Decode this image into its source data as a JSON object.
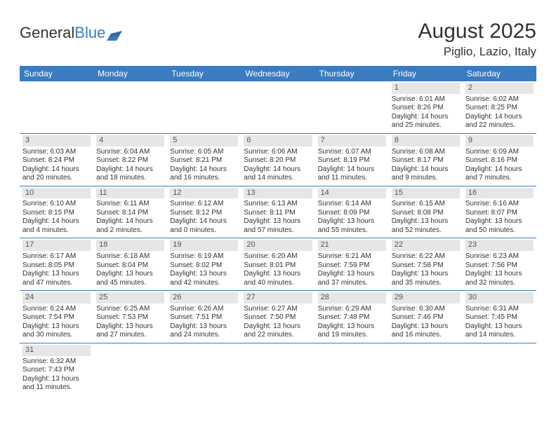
{
  "logo": {
    "part1": "General",
    "part2": "Blue"
  },
  "title": "August 2025",
  "location": "Piglio, Lazio, Italy",
  "colors": {
    "header_bg": "#3b7bbf",
    "header_fg": "#ffffff",
    "daynum_bg": "#e6e6e6",
    "border": "#3b7bbf",
    "page_bg": "#ffffff",
    "text": "#333333"
  },
  "typography": {
    "title_fontsize_pt": 22,
    "location_fontsize_pt": 13,
    "header_fontsize_pt": 9,
    "cell_fontsize_pt": 7.5
  },
  "weekdays": [
    "Sunday",
    "Monday",
    "Tuesday",
    "Wednesday",
    "Thursday",
    "Friday",
    "Saturday"
  ],
  "weeks": [
    [
      {
        "blank": true
      },
      {
        "blank": true
      },
      {
        "blank": true
      },
      {
        "blank": true
      },
      {
        "blank": true
      },
      {
        "day": "1",
        "sunrise": "Sunrise: 6:01 AM",
        "sunset": "Sunset: 8:26 PM",
        "daylight": "Daylight: 14 hours and 25 minutes."
      },
      {
        "day": "2",
        "sunrise": "Sunrise: 6:02 AM",
        "sunset": "Sunset: 8:25 PM",
        "daylight": "Daylight: 14 hours and 22 minutes."
      }
    ],
    [
      {
        "day": "3",
        "sunrise": "Sunrise: 6:03 AM",
        "sunset": "Sunset: 8:24 PM",
        "daylight": "Daylight: 14 hours and 20 minutes."
      },
      {
        "day": "4",
        "sunrise": "Sunrise: 6:04 AM",
        "sunset": "Sunset: 8:22 PM",
        "daylight": "Daylight: 14 hours and 18 minutes."
      },
      {
        "day": "5",
        "sunrise": "Sunrise: 6:05 AM",
        "sunset": "Sunset: 8:21 PM",
        "daylight": "Daylight: 14 hours and 16 minutes."
      },
      {
        "day": "6",
        "sunrise": "Sunrise: 6:06 AM",
        "sunset": "Sunset: 8:20 PM",
        "daylight": "Daylight: 14 hours and 14 minutes."
      },
      {
        "day": "7",
        "sunrise": "Sunrise: 6:07 AM",
        "sunset": "Sunset: 8:19 PM",
        "daylight": "Daylight: 14 hours and 11 minutes."
      },
      {
        "day": "8",
        "sunrise": "Sunrise: 6:08 AM",
        "sunset": "Sunset: 8:17 PM",
        "daylight": "Daylight: 14 hours and 9 minutes."
      },
      {
        "day": "9",
        "sunrise": "Sunrise: 6:09 AM",
        "sunset": "Sunset: 8:16 PM",
        "daylight": "Daylight: 14 hours and 7 minutes."
      }
    ],
    [
      {
        "day": "10",
        "sunrise": "Sunrise: 6:10 AM",
        "sunset": "Sunset: 8:15 PM",
        "daylight": "Daylight: 14 hours and 4 minutes."
      },
      {
        "day": "11",
        "sunrise": "Sunrise: 6:11 AM",
        "sunset": "Sunset: 8:14 PM",
        "daylight": "Daylight: 14 hours and 2 minutes."
      },
      {
        "day": "12",
        "sunrise": "Sunrise: 6:12 AM",
        "sunset": "Sunset: 8:12 PM",
        "daylight": "Daylight: 14 hours and 0 minutes."
      },
      {
        "day": "13",
        "sunrise": "Sunrise: 6:13 AM",
        "sunset": "Sunset: 8:11 PM",
        "daylight": "Daylight: 13 hours and 57 minutes."
      },
      {
        "day": "14",
        "sunrise": "Sunrise: 6:14 AM",
        "sunset": "Sunset: 8:09 PM",
        "daylight": "Daylight: 13 hours and 55 minutes."
      },
      {
        "day": "15",
        "sunrise": "Sunrise: 6:15 AM",
        "sunset": "Sunset: 8:08 PM",
        "daylight": "Daylight: 13 hours and 52 minutes."
      },
      {
        "day": "16",
        "sunrise": "Sunrise: 6:16 AM",
        "sunset": "Sunset: 8:07 PM",
        "daylight": "Daylight: 13 hours and 50 minutes."
      }
    ],
    [
      {
        "day": "17",
        "sunrise": "Sunrise: 6:17 AM",
        "sunset": "Sunset: 8:05 PM",
        "daylight": "Daylight: 13 hours and 47 minutes."
      },
      {
        "day": "18",
        "sunrise": "Sunrise: 6:18 AM",
        "sunset": "Sunset: 8:04 PM",
        "daylight": "Daylight: 13 hours and 45 minutes."
      },
      {
        "day": "19",
        "sunrise": "Sunrise: 6:19 AM",
        "sunset": "Sunset: 8:02 PM",
        "daylight": "Daylight: 13 hours and 42 minutes."
      },
      {
        "day": "20",
        "sunrise": "Sunrise: 6:20 AM",
        "sunset": "Sunset: 8:01 PM",
        "daylight": "Daylight: 13 hours and 40 minutes."
      },
      {
        "day": "21",
        "sunrise": "Sunrise: 6:21 AM",
        "sunset": "Sunset: 7:59 PM",
        "daylight": "Daylight: 13 hours and 37 minutes."
      },
      {
        "day": "22",
        "sunrise": "Sunrise: 6:22 AM",
        "sunset": "Sunset: 7:58 PM",
        "daylight": "Daylight: 13 hours and 35 minutes."
      },
      {
        "day": "23",
        "sunrise": "Sunrise: 6:23 AM",
        "sunset": "Sunset: 7:56 PM",
        "daylight": "Daylight: 13 hours and 32 minutes."
      }
    ],
    [
      {
        "day": "24",
        "sunrise": "Sunrise: 6:24 AM",
        "sunset": "Sunset: 7:54 PM",
        "daylight": "Daylight: 13 hours and 30 minutes."
      },
      {
        "day": "25",
        "sunrise": "Sunrise: 6:25 AM",
        "sunset": "Sunset: 7:53 PM",
        "daylight": "Daylight: 13 hours and 27 minutes."
      },
      {
        "day": "26",
        "sunrise": "Sunrise: 6:26 AM",
        "sunset": "Sunset: 7:51 PM",
        "daylight": "Daylight: 13 hours and 24 minutes."
      },
      {
        "day": "27",
        "sunrise": "Sunrise: 6:27 AM",
        "sunset": "Sunset: 7:50 PM",
        "daylight": "Daylight: 13 hours and 22 minutes."
      },
      {
        "day": "28",
        "sunrise": "Sunrise: 6:29 AM",
        "sunset": "Sunset: 7:48 PM",
        "daylight": "Daylight: 13 hours and 19 minutes."
      },
      {
        "day": "29",
        "sunrise": "Sunrise: 6:30 AM",
        "sunset": "Sunset: 7:46 PM",
        "daylight": "Daylight: 13 hours and 16 minutes."
      },
      {
        "day": "30",
        "sunrise": "Sunrise: 6:31 AM",
        "sunset": "Sunset: 7:45 PM",
        "daylight": "Daylight: 13 hours and 14 minutes."
      }
    ],
    [
      {
        "day": "31",
        "sunrise": "Sunrise: 6:32 AM",
        "sunset": "Sunset: 7:43 PM",
        "daylight": "Daylight: 13 hours and 11 minutes."
      },
      {
        "blank": true
      },
      {
        "blank": true
      },
      {
        "blank": true
      },
      {
        "blank": true
      },
      {
        "blank": true
      },
      {
        "blank": true
      }
    ]
  ]
}
